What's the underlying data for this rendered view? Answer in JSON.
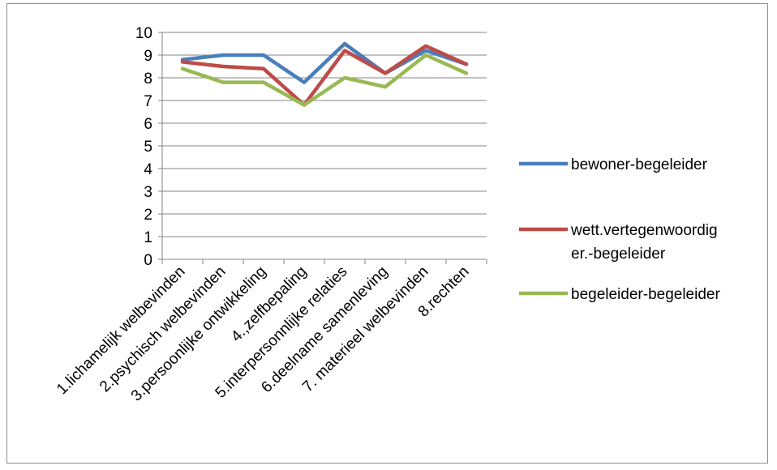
{
  "chart_data": {
    "type": "line",
    "title": "",
    "xlabel": "",
    "ylabel": "",
    "ylim": [
      0,
      10
    ],
    "yticks": [
      "0",
      "1",
      "2",
      "3",
      "4",
      "5",
      "6",
      "7",
      "8",
      "9",
      "10"
    ],
    "grid": "horizontal",
    "legend_position": "right",
    "categories": [
      "1.lichamelijk welbevinden",
      "2.psychisch welbevinden",
      "3.persoonlijke ontwikkeling",
      "4.,zelfbepaling",
      "5.interpersonnlijke relaties",
      "6.deelname samenleving",
      "7. materieel welbevinden",
      "8.rechten"
    ],
    "series": [
      {
        "name": "bewoner-begeleider",
        "legend_lines": [
          "bewoner-begeleider"
        ],
        "color": "#4a7ebb",
        "values": [
          8.8,
          9.0,
          9.0,
          7.8,
          9.5,
          8.2,
          9.2,
          8.6
        ]
      },
      {
        "name": "wett.vertegenwoordiger.-begeleider",
        "legend_lines": [
          "wett.vertegenwoordig",
          "er.-begeleider"
        ],
        "color": "#be4b48",
        "values": [
          8.7,
          8.5,
          8.4,
          6.8,
          9.2,
          8.2,
          9.4,
          8.6
        ]
      },
      {
        "name": "begeleider-begeleider",
        "legend_lines": [
          "begeleider-begeleider"
        ],
        "color": "#98b954",
        "values": [
          8.4,
          7.8,
          7.8,
          6.8,
          8.0,
          7.6,
          9.0,
          8.2
        ]
      }
    ]
  }
}
